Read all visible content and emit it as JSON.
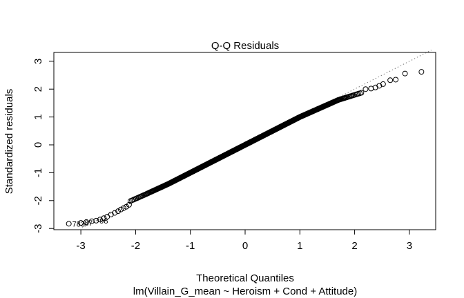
{
  "chart_data": {
    "type": "scatter",
    "title": "Q-Q Residuals",
    "xlabel": "Theoretical Quantiles",
    "sub_xlabel": "lm(Villain_G_mean ~ Heroism + Cond + Attitude)",
    "ylabel": "Standardized residuals",
    "xlim": [
      -3.45,
      3.45
    ],
    "ylim": [
      -3.0,
      3.0
    ],
    "xticks": [
      -3,
      -2,
      -1,
      0,
      1,
      2,
      3
    ],
    "yticks": [
      -3,
      -2,
      -1,
      0,
      1,
      2,
      3
    ],
    "grid": false,
    "reference_line": {
      "style": "dotted",
      "color": "#7a7a7a",
      "slope": 1.0,
      "intercept": 0.0
    },
    "point_count": 800,
    "tails": {
      "lower": [
        {
          "x": -3.22,
          "y": -2.83
        },
        {
          "x": -3.0,
          "y": -2.8
        },
        {
          "x": -2.9,
          "y": -2.77
        },
        {
          "x": -2.8,
          "y": -2.74
        },
        {
          "x": -2.72,
          "y": -2.72
        },
        {
          "x": -2.65,
          "y": -2.68
        },
        {
          "x": -2.58,
          "y": -2.63
        },
        {
          "x": -2.52,
          "y": -2.58
        },
        {
          "x": -2.45,
          "y": -2.5
        },
        {
          "x": -2.38,
          "y": -2.44
        },
        {
          "x": -2.32,
          "y": -2.38
        },
        {
          "x": -2.27,
          "y": -2.32
        },
        {
          "x": -2.22,
          "y": -2.27
        },
        {
          "x": -2.17,
          "y": -2.22
        },
        {
          "x": -2.12,
          "y": -2.15
        }
      ],
      "upper": [
        {
          "x": 2.2,
          "y": 2.0
        },
        {
          "x": 2.3,
          "y": 2.02
        },
        {
          "x": 2.38,
          "y": 2.06
        },
        {
          "x": 2.45,
          "y": 2.12
        },
        {
          "x": 2.52,
          "y": 2.18
        },
        {
          "x": 2.65,
          "y": 2.32
        },
        {
          "x": 2.75,
          "y": 2.34
        },
        {
          "x": 2.92,
          "y": 2.56
        },
        {
          "x": 3.22,
          "y": 2.62
        }
      ]
    },
    "labels": [
      {
        "text": "783",
        "x": -3.22,
        "y": -2.83
      },
      {
        "text": "87",
        "x": -3.0,
        "y": -2.8
      },
      {
        "text": "98",
        "x": -2.72,
        "y": -2.72
      }
    ]
  }
}
